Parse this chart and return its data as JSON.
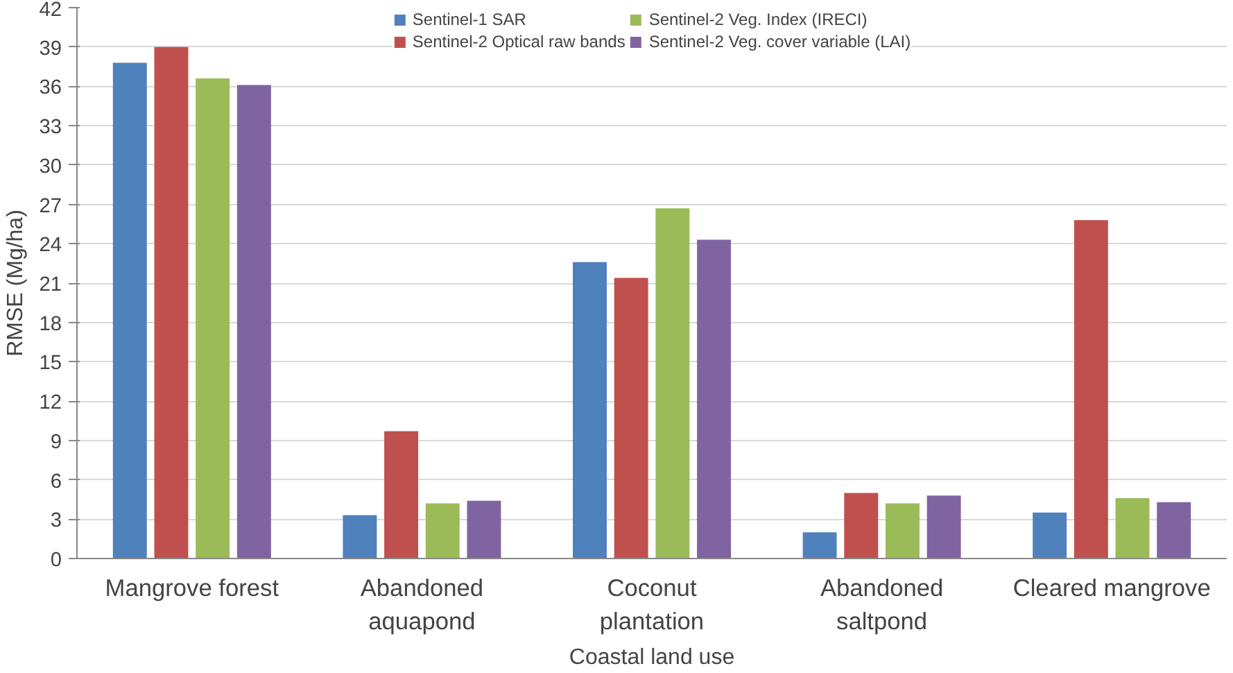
{
  "chart_data": {
    "type": "bar",
    "xlabel": "Coastal land use",
    "ylabel": "RMSE (Mg/ha)",
    "categories": [
      "Mangrove forest",
      "Abandoned\naquapond",
      "Coconut\nplantation",
      "Abandoned\nsaltpond",
      "Cleared mangrove"
    ],
    "series": [
      {
        "name": "Sentinel-1 SAR",
        "color": "#4f81bd",
        "values": [
          37.8,
          3.3,
          22.6,
          2.0,
          3.5
        ]
      },
      {
        "name": "Sentinel-2 Optical raw bands",
        "color": "#c0504d",
        "values": [
          39.0,
          9.7,
          21.4,
          5.0,
          25.8
        ]
      },
      {
        "name": "Sentinel-2 Veg. Index (IRECI)",
        "color": "#9bbb59",
        "values": [
          36.6,
          4.2,
          26.7,
          4.2,
          4.6
        ]
      },
      {
        "name": "Sentinel-2 Veg. cover variable (LAI)",
        "color": "#8064a2",
        "values": [
          36.1,
          4.4,
          24.3,
          4.8,
          4.3
        ]
      }
    ],
    "ylim": [
      0,
      42
    ],
    "yticks": [
      0,
      3,
      6,
      9,
      12,
      15,
      18,
      21,
      24,
      27,
      30,
      33,
      36,
      39,
      42
    ],
    "grid": "y",
    "legend": "top"
  }
}
